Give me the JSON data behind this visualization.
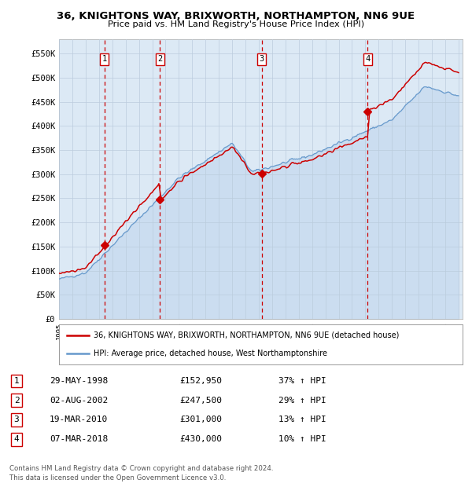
{
  "title1": "36, KNIGHTONS WAY, BRIXWORTH, NORTHAMPTON, NN6 9UE",
  "title2": "Price paid vs. HM Land Registry's House Price Index (HPI)",
  "ylabel_ticks": [
    "£0",
    "£50K",
    "£100K",
    "£150K",
    "£200K",
    "£250K",
    "£300K",
    "£350K",
    "£400K",
    "£450K",
    "£500K",
    "£550K"
  ],
  "ytick_values": [
    0,
    50000,
    100000,
    150000,
    200000,
    250000,
    300000,
    350000,
    400000,
    450000,
    500000,
    550000
  ],
  "sale_dates": [
    1998.41,
    2002.58,
    2010.21,
    2018.18
  ],
  "sale_prices": [
    152950,
    247500,
    301000,
    430000
  ],
  "sale_labels": [
    "1",
    "2",
    "3",
    "4"
  ],
  "legend_line1": "36, KNIGHTONS WAY, BRIXWORTH, NORTHAMPTON, NN6 9UE (detached house)",
  "legend_line2": "HPI: Average price, detached house, West Northamptonshire",
  "table_rows": [
    [
      "1",
      "29-MAY-1998",
      "£152,950",
      "37% ↑ HPI"
    ],
    [
      "2",
      "02-AUG-2002",
      "£247,500",
      "29% ↑ HPI"
    ],
    [
      "3",
      "19-MAR-2010",
      "£301,000",
      "13% ↑ HPI"
    ],
    [
      "4",
      "07-MAR-2018",
      "£430,000",
      "10% ↑ HPI"
    ]
  ],
  "footnote1": "Contains HM Land Registry data © Crown copyright and database right 2024.",
  "footnote2": "This data is licensed under the Open Government Licence v3.0.",
  "hpi_color": "#6699cc",
  "hpi_fill_color": "#c5d9ee",
  "price_color": "#cc0000",
  "vline_color": "#cc0000",
  "background_color": "#dce9f5",
  "plot_bg": "#ffffff",
  "grid_color": "#bbccdd"
}
